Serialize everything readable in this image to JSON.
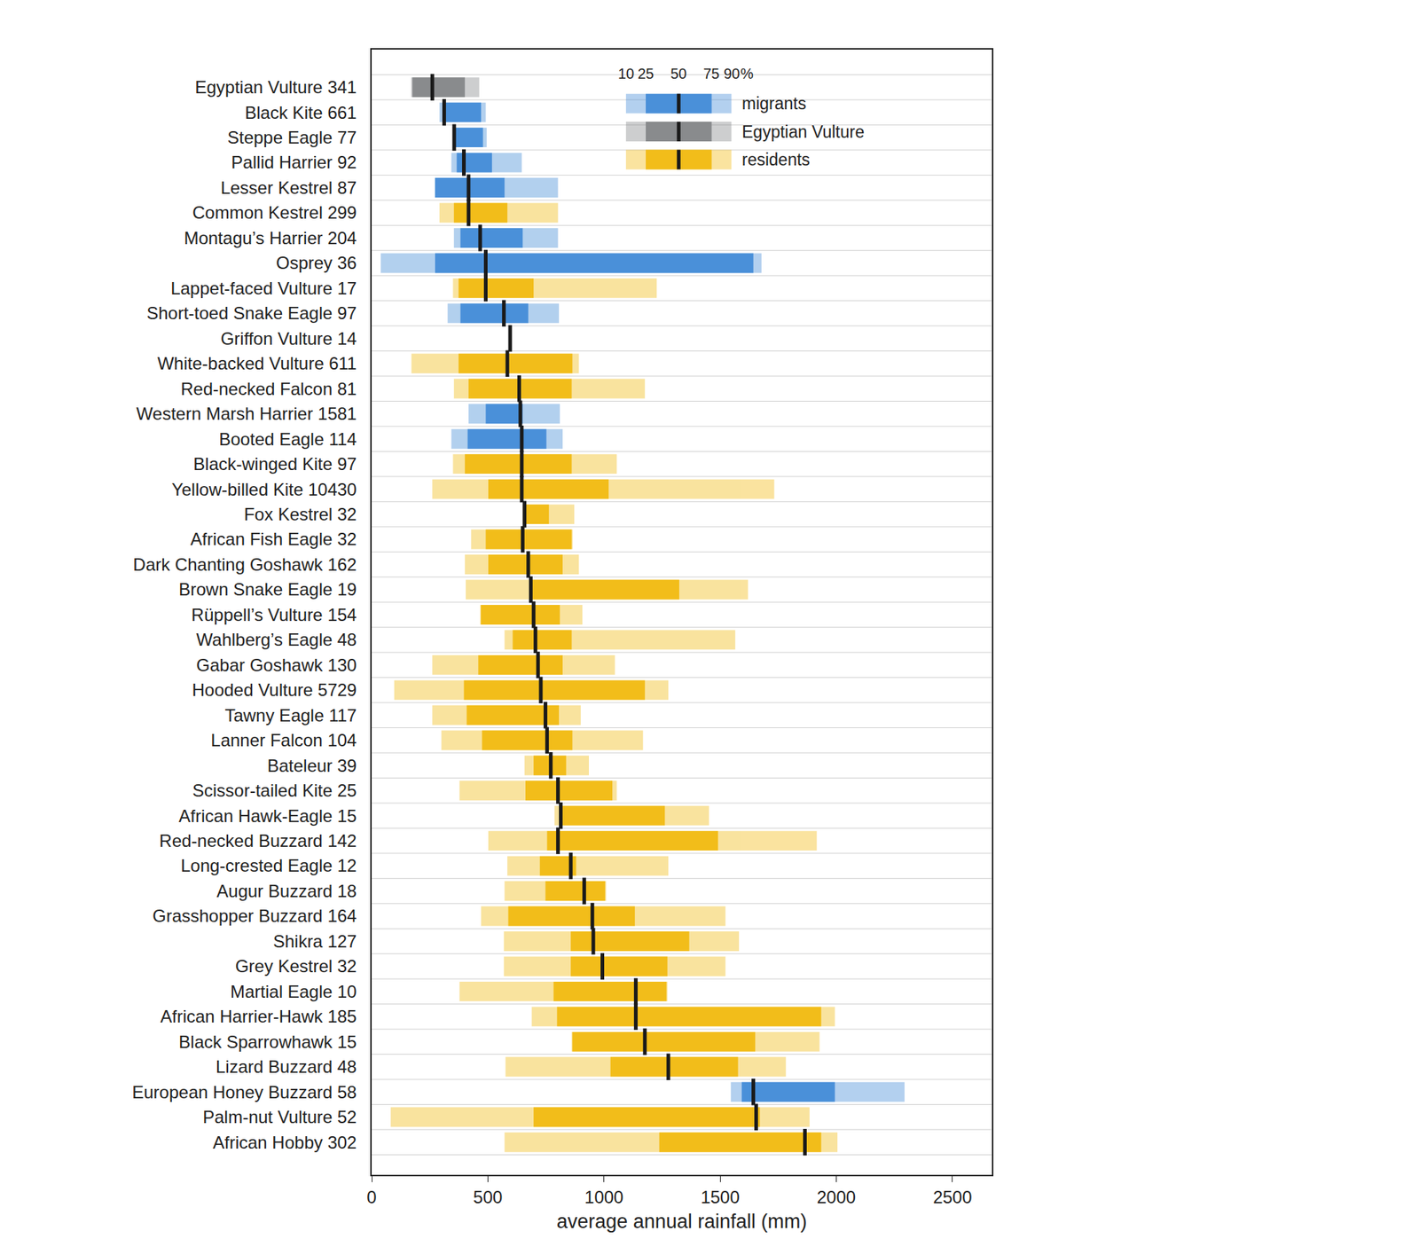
{
  "chart_data": {
    "type": "percentile",
    "orientation": "horizontal",
    "x_label": "average annual rainfall (mm)",
    "xlim": [
      0,
      2670
    ],
    "xticks": [
      0,
      500,
      1000,
      1500,
      2000,
      2500
    ],
    "grid": true,
    "legend": "upper right",
    "percentiles": [
      10,
      25,
      50,
      75,
      90
    ],
    "percentile_unit": "%",
    "categories": [
      "Egyptian Vulture 341",
      "Black Kite 661",
      "Steppe Eagle 77",
      "Pallid Harrier 92",
      "Lesser Kestrel 87",
      "Common Kestrel 299",
      "Montagu’s Harrier 204",
      "Osprey 36",
      "Lappet-faced Vulture 17",
      "Short-toed Snake Eagle 97",
      "Griffon Vulture 14",
      "White-backed Vulture 611",
      "Red-necked Falcon 81",
      "Western Marsh Harrier 1581",
      "Booted Eagle 114",
      "Black-winged Kite 97",
      "Yellow-billed Kite 10430",
      "Fox Kestrel 32",
      "African Fish Eagle 32",
      "Dark Chanting Goshawk 162",
      "Brown Snake Eagle 19",
      "Rüppell’s Vulture 154",
      "Wahlberg’s Eagle 48",
      "Gabar Goshawk 130",
      "Hooded Vulture 5729",
      "Tawny Eagle 117",
      "Lanner Falcon 104",
      "Bateleur 39",
      "Scissor-tailed Kite 25",
      "African Hawk-Eagle 15",
      "Red-necked Buzzard 142",
      "Long-crested Eagle 12",
      "Augur Buzzard 18",
      "Grasshopper Buzzard 164",
      "Shikra 127",
      "Grey Kestrel 32",
      "Martial Eagle 10",
      "African Harrier-Hawk 185",
      "Black Sparrowhawk 15",
      "Lizard Buzzard 48",
      "European Honey Buzzard 58",
      "Palm-nut Vulture 52",
      "African Hobby 302"
    ],
    "series": [
      {
        "name": "migrants",
        "color": "#4a90d9",
        "values": [
          null,
          [
            292,
            304,
            312,
            471,
            491
          ],
          [
            350,
            352,
            355,
            479,
            495
          ],
          [
            343,
            366,
            397,
            518,
            646
          ],
          [
            272,
            273,
            417,
            572,
            802
          ],
          null,
          [
            354,
            382,
            467,
            650,
            802
          ],
          [
            39,
            273,
            491,
            1643,
            1678
          ],
          null,
          [
            327,
            382,
            569,
            674,
            806
          ],
          null,
          null,
          null,
          [
            417,
            491,
            640,
            650,
            810
          ],
          [
            343,
            413,
            646,
            752,
            822
          ],
          null,
          null,
          null,
          null,
          null,
          null,
          null,
          null,
          null,
          null,
          null,
          null,
          null,
          null,
          null,
          null,
          null,
          null,
          null,
          null,
          null,
          null,
          null,
          null,
          null,
          [
            1546,
            1593,
            1643,
            1994,
            2294
          ],
          null,
          null
        ]
      },
      {
        "name": "Egyptian Vulture",
        "color": "#898b8d",
        "values": [
          [
            170,
            175,
            261,
            401,
            463
          ],
          null,
          null,
          null,
          null,
          null,
          null,
          null,
          null,
          null,
          null,
          null,
          null,
          null,
          null,
          null,
          null,
          null,
          null,
          null,
          null,
          null,
          null,
          null,
          null,
          null,
          null,
          null,
          null,
          null,
          null,
          null,
          null,
          null,
          null,
          null,
          null,
          null,
          null
        ]
      },
      {
        "name": "residents",
        "color": "#f2bd1a",
        "values": [
          null,
          null,
          null,
          null,
          null,
          [
            292,
            354,
            417,
            584,
            802
          ],
          null,
          null,
          [
            350,
            374,
            491,
            697,
            1227
          ],
          null,
          [
            590,
            592,
            596,
            600,
            602
          ],
          [
            171,
            374,
            584,
            864,
            892
          ],
          [
            354,
            417,
            635,
            861,
            1176
          ],
          null,
          null,
          [
            350,
            401,
            646,
            861,
            1055
          ],
          [
            261,
            502,
            646,
            1020,
            1733
          ],
          [
            650,
            655,
            658,
            763,
            872
          ],
          [
            428,
            491,
            650,
            861,
            865
          ],
          [
            401,
            502,
            674,
            822,
            892
          ],
          [
            405,
            680,
            685,
            1324,
            1620
          ],
          [
            467,
            470,
            697,
            810,
            907
          ],
          [
            572,
            607,
            705,
            861,
            1565
          ],
          [
            261,
            459,
            716,
            822,
            1047
          ],
          [
            97,
            397,
            728,
            1176,
            1277
          ],
          [
            261,
            409,
            748,
            806,
            900
          ],
          [
            300,
            475,
            755,
            864,
            1168
          ],
          [
            658,
            697,
            771,
            837,
            935
          ],
          [
            378,
            662,
            802,
            1036,
            1055
          ],
          [
            787,
            806,
            814,
            1262,
            1452
          ],
          [
            502,
            755,
            802,
            1491,
            1916
          ],
          [
            584,
            724,
            857,
            880,
            1277
          ],
          [
            572,
            748,
            915,
            1005,
            1009
          ],
          [
            471,
            588,
            950,
            1133,
            1523
          ],
          [
            569,
            857,
            954,
            1367,
            1581
          ],
          [
            569,
            857,
            993,
            1273,
            1523
          ],
          [
            378,
            783,
            1137,
            1269,
            1273
          ],
          [
            689,
            798,
            1137,
            1935,
            1994
          ],
          [
            861,
            864,
            1176,
            1651,
            1928
          ],
          [
            576,
            1028,
            1277,
            1577,
            1783
          ],
          null,
          [
            82,
            697,
            1655,
            1671,
            1885
          ],
          [
            572,
            1238,
            1865,
            1935,
            2005
          ]
        ]
      }
    ]
  }
}
